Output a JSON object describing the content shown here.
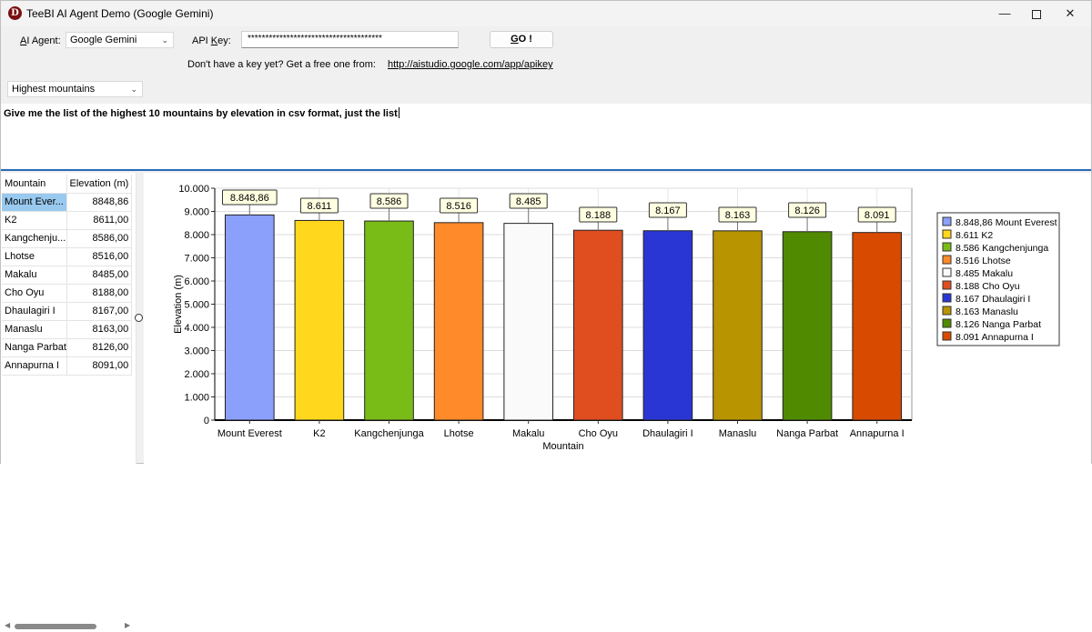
{
  "window": {
    "title": "TeeBI AI Agent Demo (Google Gemini)",
    "icon_letter": "D",
    "controls": [
      "—",
      "✕"
    ]
  },
  "toolbar": {
    "agent_label_prefix": "",
    "agent_label_access": "A",
    "agent_label_rest": "I Agent:",
    "agent_value": "Google Gemini",
    "apikey_label_pre": "API ",
    "apikey_label_access": "K",
    "apikey_label_post": "ey:",
    "apikey_value": "**************************************",
    "go_access": "G",
    "go_rest": "O !",
    "help_text": "Don't have a key yet? Get a free one from:",
    "help_link": "http://aistudio.google.com/app/apikey",
    "preset_value": "Highest mountains"
  },
  "prompt": {
    "text": "Give me the list of the highest 10 mountains by elevation in csv format, just the list"
  },
  "grid": {
    "columns": [
      "Mountain",
      "Elevation (m)"
    ],
    "rows": [
      [
        "Mount Ever...",
        "8848,86"
      ],
      [
        "K2",
        "8611,00"
      ],
      [
        "Kangchenju...",
        "8586,00"
      ],
      [
        "Lhotse",
        "8516,00"
      ],
      [
        "Makalu",
        "8485,00"
      ],
      [
        "Cho Oyu",
        "8188,00"
      ],
      [
        "Dhaulagiri I",
        "8167,00"
      ],
      [
        "Manaslu",
        "8163,00"
      ],
      [
        "Nanga Parbat",
        "8126,00"
      ],
      [
        "Annapurna I",
        "8091,00"
      ]
    ],
    "selected_row": 0
  },
  "chart_data": {
    "type": "bar",
    "categories": [
      "Mount Everest",
      "K2",
      "Kangchenjunga",
      "Lhotse",
      "Makalu",
      "Cho Oyu",
      "Dhaulagiri I",
      "Manaslu",
      "Nanga Parbat",
      "Annapurna I"
    ],
    "values": [
      8848.86,
      8611,
      8586,
      8516,
      8485,
      8188,
      8167,
      8163,
      8126,
      8091
    ],
    "data_labels": [
      "8.848,86",
      "8.611",
      "8.586",
      "8.516",
      "8.485",
      "8.188",
      "8.167",
      "8.163",
      "8.126",
      "8.091"
    ],
    "legend_labels": [
      "8.848,86 Mount Everest",
      "8.611 K2",
      "8.586 Kangchenjunga",
      "8.516 Lhotse",
      "8.485 Makalu",
      "8.188 Cho Oyu",
      "8.167 Dhaulagiri I",
      "8.163 Manaslu",
      "8.126 Nanga Parbat",
      "8.091 Annapurna I"
    ],
    "colors": [
      "#8aa0fa",
      "#ffd71c",
      "#79bb17",
      "#ff8a2a",
      "#fafafa",
      "#e04e20",
      "#2a36d4",
      "#b89400",
      "#4f8a00",
      "#d84a00"
    ],
    "xlabel": "Mountain",
    "ylabel": "Elevation (m)",
    "ylim": [
      0,
      10000
    ],
    "yticks": [
      0,
      1000,
      2000,
      3000,
      4000,
      5000,
      6000,
      7000,
      8000,
      9000,
      10000
    ],
    "ytick_labels": [
      "0",
      "1.000",
      "2.000",
      "3.000",
      "4.000",
      "5.000",
      "6.000",
      "7.000",
      "8.000",
      "9.000",
      "10.000"
    ],
    "grid": true,
    "legend_position": "right"
  }
}
